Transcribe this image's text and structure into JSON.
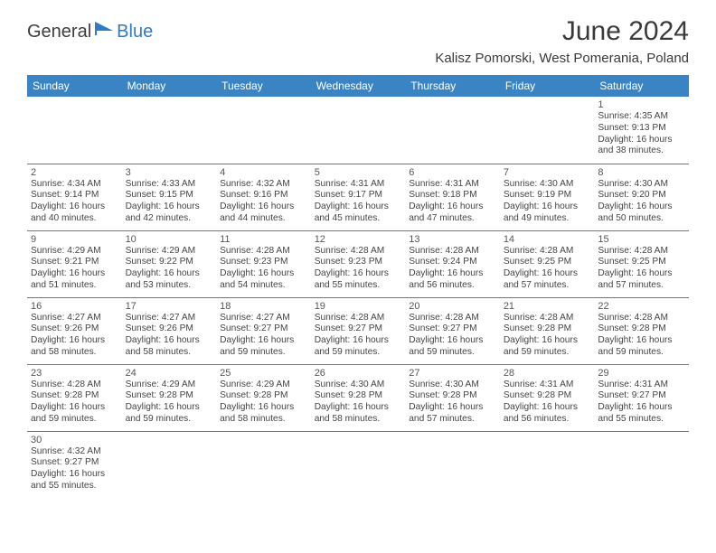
{
  "brand": {
    "part1": "General",
    "part2": "Blue"
  },
  "title": "June 2024",
  "location": "Kalisz Pomorski, West Pomerania, Poland",
  "colors": {
    "header_bg": "#3b84c4",
    "header_text": "#ffffff",
    "rule": "#3b84c4",
    "brand_accent": "#2f7bc4",
    "text": "#3a3a3a",
    "page_bg": "#ffffff"
  },
  "weekdays": [
    "Sunday",
    "Monday",
    "Tuesday",
    "Wednesday",
    "Thursday",
    "Friday",
    "Saturday"
  ],
  "layout": {
    "first_weekday_index": 6,
    "days_in_month": 30,
    "rows": 6,
    "cols": 7
  },
  "days": {
    "1": {
      "sunrise": "4:35 AM",
      "sunset": "9:13 PM",
      "daylight_h": 16,
      "daylight_m": 38
    },
    "2": {
      "sunrise": "4:34 AM",
      "sunset": "9:14 PM",
      "daylight_h": 16,
      "daylight_m": 40
    },
    "3": {
      "sunrise": "4:33 AM",
      "sunset": "9:15 PM",
      "daylight_h": 16,
      "daylight_m": 42
    },
    "4": {
      "sunrise": "4:32 AM",
      "sunset": "9:16 PM",
      "daylight_h": 16,
      "daylight_m": 44
    },
    "5": {
      "sunrise": "4:31 AM",
      "sunset": "9:17 PM",
      "daylight_h": 16,
      "daylight_m": 45
    },
    "6": {
      "sunrise": "4:31 AM",
      "sunset": "9:18 PM",
      "daylight_h": 16,
      "daylight_m": 47
    },
    "7": {
      "sunrise": "4:30 AM",
      "sunset": "9:19 PM",
      "daylight_h": 16,
      "daylight_m": 49
    },
    "8": {
      "sunrise": "4:30 AM",
      "sunset": "9:20 PM",
      "daylight_h": 16,
      "daylight_m": 50
    },
    "9": {
      "sunrise": "4:29 AM",
      "sunset": "9:21 PM",
      "daylight_h": 16,
      "daylight_m": 51
    },
    "10": {
      "sunrise": "4:29 AM",
      "sunset": "9:22 PM",
      "daylight_h": 16,
      "daylight_m": 53
    },
    "11": {
      "sunrise": "4:28 AM",
      "sunset": "9:23 PM",
      "daylight_h": 16,
      "daylight_m": 54
    },
    "12": {
      "sunrise": "4:28 AM",
      "sunset": "9:23 PM",
      "daylight_h": 16,
      "daylight_m": 55
    },
    "13": {
      "sunrise": "4:28 AM",
      "sunset": "9:24 PM",
      "daylight_h": 16,
      "daylight_m": 56
    },
    "14": {
      "sunrise": "4:28 AM",
      "sunset": "9:25 PM",
      "daylight_h": 16,
      "daylight_m": 57
    },
    "15": {
      "sunrise": "4:28 AM",
      "sunset": "9:25 PM",
      "daylight_h": 16,
      "daylight_m": 57
    },
    "16": {
      "sunrise": "4:27 AM",
      "sunset": "9:26 PM",
      "daylight_h": 16,
      "daylight_m": 58
    },
    "17": {
      "sunrise": "4:27 AM",
      "sunset": "9:26 PM",
      "daylight_h": 16,
      "daylight_m": 58
    },
    "18": {
      "sunrise": "4:27 AM",
      "sunset": "9:27 PM",
      "daylight_h": 16,
      "daylight_m": 59
    },
    "19": {
      "sunrise": "4:28 AM",
      "sunset": "9:27 PM",
      "daylight_h": 16,
      "daylight_m": 59
    },
    "20": {
      "sunrise": "4:28 AM",
      "sunset": "9:27 PM",
      "daylight_h": 16,
      "daylight_m": 59
    },
    "21": {
      "sunrise": "4:28 AM",
      "sunset": "9:28 PM",
      "daylight_h": 16,
      "daylight_m": 59
    },
    "22": {
      "sunrise": "4:28 AM",
      "sunset": "9:28 PM",
      "daylight_h": 16,
      "daylight_m": 59
    },
    "23": {
      "sunrise": "4:28 AM",
      "sunset": "9:28 PM",
      "daylight_h": 16,
      "daylight_m": 59
    },
    "24": {
      "sunrise": "4:29 AM",
      "sunset": "9:28 PM",
      "daylight_h": 16,
      "daylight_m": 59
    },
    "25": {
      "sunrise": "4:29 AM",
      "sunset": "9:28 PM",
      "daylight_h": 16,
      "daylight_m": 58
    },
    "26": {
      "sunrise": "4:30 AM",
      "sunset": "9:28 PM",
      "daylight_h": 16,
      "daylight_m": 58
    },
    "27": {
      "sunrise": "4:30 AM",
      "sunset": "9:28 PM",
      "daylight_h": 16,
      "daylight_m": 57
    },
    "28": {
      "sunrise": "4:31 AM",
      "sunset": "9:28 PM",
      "daylight_h": 16,
      "daylight_m": 56
    },
    "29": {
      "sunrise": "4:31 AM",
      "sunset": "9:27 PM",
      "daylight_h": 16,
      "daylight_m": 55
    },
    "30": {
      "sunrise": "4:32 AM",
      "sunset": "9:27 PM",
      "daylight_h": 16,
      "daylight_m": 55
    }
  },
  "labels": {
    "sunrise_prefix": "Sunrise: ",
    "sunset_prefix": "Sunset: ",
    "daylight_prefix": "Daylight: ",
    "hours_word": " hours",
    "and_word": "and ",
    "minutes_word": " minutes."
  }
}
